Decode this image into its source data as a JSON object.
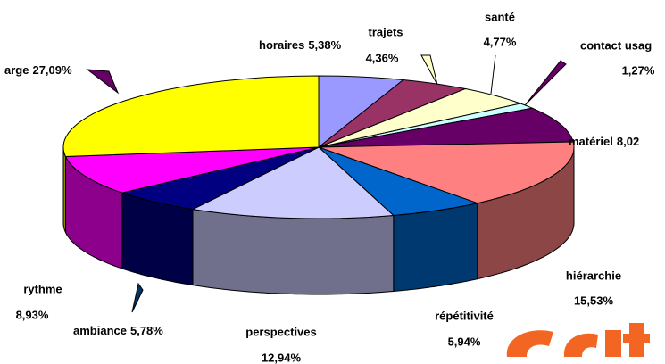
{
  "chart_data": {
    "type": "pie3d",
    "categories": [
      "horaires",
      "trajets",
      "santé",
      "contact usag",
      "matériel",
      "hiérarchie",
      "répétitivité",
      "perspectives",
      "ambiance",
      "rythme",
      "arge"
    ],
    "values": [
      5.38,
      4.36,
      4.77,
      1.27,
      8.02,
      15.53,
      5.94,
      12.94,
      5.78,
      8.93,
      27.09
    ],
    "value_labels": [
      "5,38%",
      "4,36%",
      "4,77%",
      "1,27%",
      "8,02",
      "15,53%",
      "5,94%",
      "12,94%",
      "5,78%",
      "8,93%",
      "27,09%"
    ],
    "colors": [
      "#9999ff",
      "#993366",
      "#ffffcc",
      "#ccffff",
      "#660066",
      "#ff8080",
      "#0066cc",
      "#ccccff",
      "#000080",
      "#ff00ff",
      "#ffff00"
    ]
  }
}
